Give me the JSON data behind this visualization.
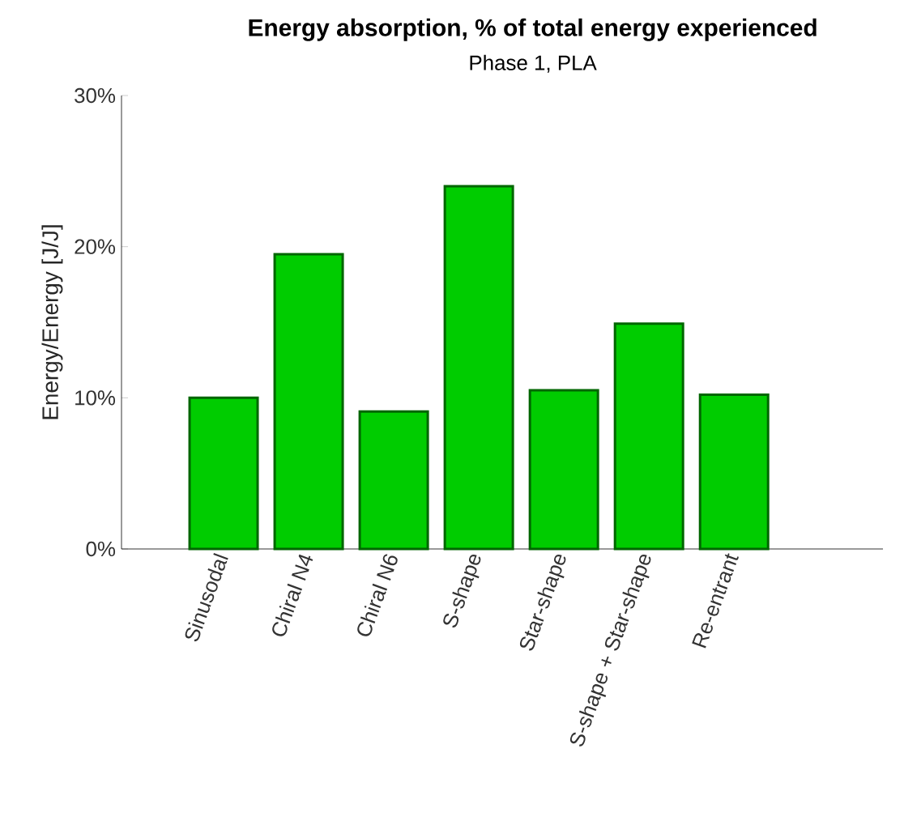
{
  "chart_data": {
    "type": "bar",
    "title": "Energy absorption, % of total energy experienced",
    "subtitle": "Phase 1, PLA",
    "ylabel": "Energy/Energy [J/J]",
    "categories": [
      "Sinusodal",
      "Chiral N4",
      "Chiral N6",
      "S-shape",
      "Star-shape",
      "S-shape + Star-shape",
      "Re-entrant"
    ],
    "values": [
      10.0,
      19.5,
      9.1,
      24.0,
      10.5,
      14.9,
      10.2
    ],
    "color": "#00cc00",
    "ylim": [
      0,
      30
    ],
    "yticks": [
      {
        "value": 0,
        "label": "0%"
      },
      {
        "value": 10,
        "label": "10%"
      },
      {
        "value": 20,
        "label": "20%"
      },
      {
        "value": 30,
        "label": "30%"
      }
    ],
    "grid": false
  }
}
